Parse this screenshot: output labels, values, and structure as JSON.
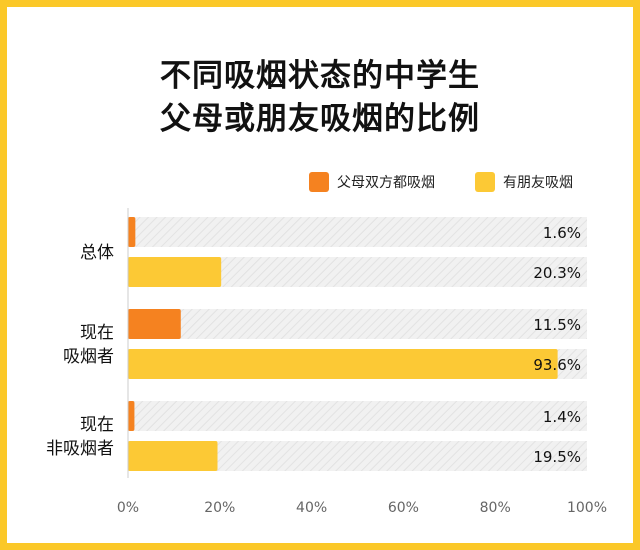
{
  "title_line1": "不同吸烟状态的中学生",
  "title_line2": "父母或朋友吸烟的比例",
  "colors": {
    "background": "#FBC828",
    "track": "#EEEEEE"
  },
  "chart_data": {
    "type": "bar",
    "orientation": "horizontal",
    "categories": [
      {
        "lines": [
          "总体"
        ]
      },
      {
        "lines": [
          "现在",
          "吸烟者"
        ]
      },
      {
        "lines": [
          "现在",
          "非吸烟者"
        ]
      }
    ],
    "series": [
      {
        "name": "父母双方都吸烟",
        "color": "#F58220",
        "values": [
          1.6,
          11.5,
          1.4
        ],
        "labels": [
          "1.6%",
          "11.5%",
          "1.4%"
        ]
      },
      {
        "name": "有朋友吸烟",
        "color": "#FCC935",
        "values": [
          20.3,
          93.6,
          19.5
        ],
        "labels": [
          "20.3%",
          "93.6%",
          "19.5%"
        ]
      }
    ],
    "xlim": [
      0,
      100
    ],
    "xticks": [
      "0%",
      "20%",
      "40%",
      "60%",
      "80%",
      "100%"
    ],
    "legend_position": "top-right"
  }
}
